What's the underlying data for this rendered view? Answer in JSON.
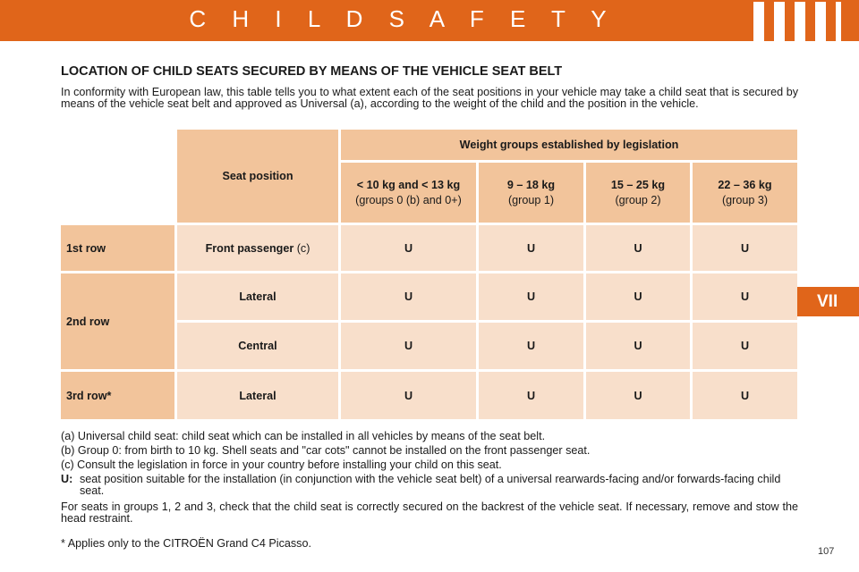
{
  "header": {
    "title": "C H I L D   S A F E T Y"
  },
  "chapter_tab": "VII",
  "section_heading": "LOCATION OF CHILD SEATS SECURED BY MEANS OF THE VEHICLE SEAT BELT",
  "intro": "In conformity with European law, this table tells you to what extent each of the seat positions in your vehicle may take a child seat that is secured by means of the vehicle seat belt and approved as Universal (a), according to the weight of the child and the position in the vehicle.",
  "table": {
    "seat_position_header": "Seat position",
    "weight_groups_header": "Weight groups established by legislation",
    "weight_groups": [
      {
        "weight": "< 10 kg and < 13 kg",
        "group": "(groups 0 (b) and 0+)"
      },
      {
        "weight": "9 – 18 kg",
        "group": "(group 1)"
      },
      {
        "weight": "15 – 25 kg",
        "group": "(group 2)"
      },
      {
        "weight": "22 – 36 kg",
        "group": "(group 3)"
      }
    ],
    "rows": [
      {
        "row": "1st row",
        "seat": "Front passenger",
        "seat_note": " (c)",
        "values": [
          "U",
          "U",
          "U",
          "U"
        ]
      },
      {
        "row": "2nd row",
        "seat": "Lateral",
        "values": [
          "U",
          "U",
          "U",
          "U"
        ]
      },
      {
        "row": "",
        "seat": "Central",
        "values": [
          "U",
          "U",
          "U",
          "U"
        ]
      },
      {
        "row": "3rd row*",
        "seat": "Lateral",
        "values": [
          "U",
          "U",
          "U",
          "U"
        ]
      }
    ]
  },
  "notes": {
    "a": "(a) Universal child seat: child seat which can be installed in all vehicles by means of the seat belt.",
    "b": "(b) Group 0: from birth to 10 kg. Shell seats and \"car cots\" cannot be installed on the front passenger seat.",
    "c": "(c) Consult the legislation in force in your country before installing your child on this seat.",
    "u_key": "U:",
    "u_text": "seat position suitable for the installation (in conjunction with the vehicle seat belt) of a universal rearwards-facing and/or forwards-facing child seat.",
    "groups_para": "For seats in groups 1, 2 and 3, check that the child seat is correctly secured on the backrest of the vehicle seat. If necessary, remove and stow the head restraint."
  },
  "footnote": "* Applies only to the CITROËN Grand C4 Picasso.",
  "page_number": "107",
  "colors": {
    "accent": "#e0651a",
    "table_dark": "#f2c49b",
    "table_light": "#f8dfcb"
  }
}
